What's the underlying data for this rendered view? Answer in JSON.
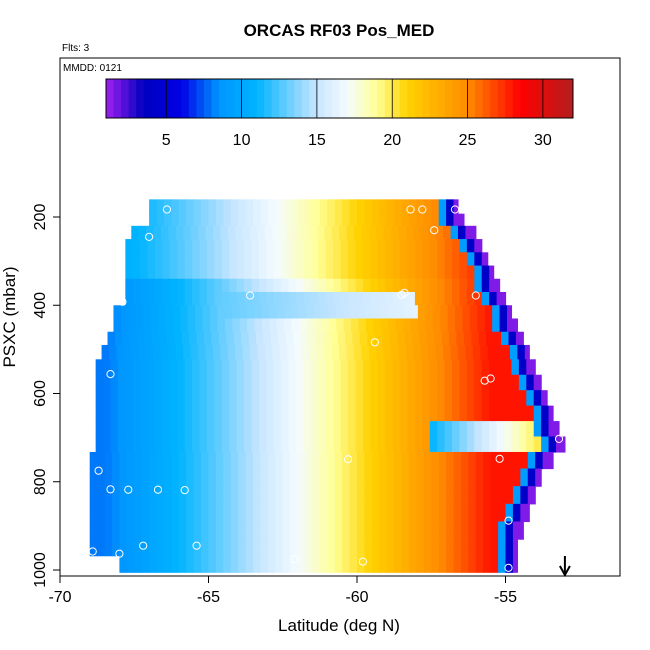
{
  "chart_data": {
    "type": "heatmap",
    "title": "ORCAS RF03 Pos_MED",
    "flights_note": "Flts: 3",
    "date_note": "MMDD: 0121",
    "xlabel": "Latitude (deg N)",
    "ylabel": "PSXC (mbar)",
    "xlim": [
      -70,
      -51
    ],
    "ylim": [
      1010,
      65
    ],
    "x_ticks": [
      -70,
      -65,
      -60,
      -55
    ],
    "x_tick_labels": [
      "-70",
      "-65",
      "-60",
      "-55"
    ],
    "y_ticks": [
      200,
      400,
      600,
      800,
      1000
    ],
    "y_tick_labels": [
      "200",
      "400",
      "600",
      "800",
      "1000"
    ],
    "colorbar": {
      "range": [
        1,
        32
      ],
      "ticks": [
        5,
        10,
        15,
        20,
        25,
        30
      ],
      "tick_labels": [
        "5",
        "10",
        "15",
        "20",
        "25",
        "30"
      ],
      "stops": [
        {
          "v": 1,
          "c": "#a020f0"
        },
        {
          "v": 3.5,
          "c": "#0000c0"
        },
        {
          "v": 6,
          "c": "#0000e6"
        },
        {
          "v": 8.5,
          "c": "#0096ff"
        },
        {
          "v": 11,
          "c": "#00b4ff"
        },
        {
          "v": 15,
          "c": "#c8e6ff"
        },
        {
          "v": 17,
          "c": "#f4fbff"
        },
        {
          "v": 19,
          "c": "#ffff96"
        },
        {
          "v": 21,
          "c": "#ffd200"
        },
        {
          "v": 25,
          "c": "#ff8c00"
        },
        {
          "v": 28.5,
          "c": "#ff0000"
        },
        {
          "v": 32,
          "c": "#b41e1e"
        }
      ]
    },
    "pressure_rows": [
      {
        "p": 180,
        "lat_min": -67.0,
        "lat_max": -56.6
      },
      {
        "p": 205,
        "lat_min": -67.0,
        "lat_max": -56.4
      },
      {
        "p": 235,
        "lat_min": -67.6,
        "lat_max": -56.0
      },
      {
        "p": 265,
        "lat_min": -67.8,
        "lat_max": -55.8
      },
      {
        "p": 295,
        "lat_min": -67.8,
        "lat_max": -55.6
      },
      {
        "p": 325,
        "lat_min": -67.8,
        "lat_max": -55.4
      },
      {
        "p": 355,
        "lat_min": -67.8,
        "lat_max": -55.2
      },
      {
        "p": 385,
        "lat_min": -67.8,
        "lat_max": -55.0
      },
      {
        "p": 415,
        "lat_min": -68.2,
        "lat_max": -54.8
      },
      {
        "p": 445,
        "lat_min": -68.2,
        "lat_max": -54.6
      },
      {
        "p": 475,
        "lat_min": -68.4,
        "lat_max": -54.4
      },
      {
        "p": 505,
        "lat_min": -68.6,
        "lat_max": -54.2
      },
      {
        "p": 540,
        "lat_min": -68.8,
        "lat_max": -54.0
      },
      {
        "p": 575,
        "lat_min": -68.8,
        "lat_max": -53.8
      },
      {
        "p": 610,
        "lat_min": -68.8,
        "lat_max": -53.6
      },
      {
        "p": 645,
        "lat_min": -68.8,
        "lat_max": -53.4
      },
      {
        "p": 680,
        "lat_min": -68.8,
        "lat_max": -53.2
      },
      {
        "p": 715,
        "lat_min": -68.8,
        "lat_max": -53.0
      },
      {
        "p": 750,
        "lat_min": -69.0,
        "lat_max": -53.4
      },
      {
        "p": 790,
        "lat_min": -69.0,
        "lat_max": -53.8
      },
      {
        "p": 830,
        "lat_min": -69.0,
        "lat_max": -54.0
      },
      {
        "p": 870,
        "lat_min": -69.0,
        "lat_max": -54.2
      },
      {
        "p": 910,
        "lat_min": -69.0,
        "lat_max": -54.4
      },
      {
        "p": 950,
        "lat_min": -69.0,
        "lat_max": -54.6
      },
      {
        "p": 985,
        "lat_min": -68.0,
        "lat_max": -54.6
      }
    ],
    "sample_points": [
      {
        "lat": -66.4,
        "p": 183
      },
      {
        "lat": -57.8,
        "p": 183
      },
      {
        "lat": -58.2,
        "p": 183
      },
      {
        "lat": -56.7,
        "p": 183
      },
      {
        "lat": -67.0,
        "p": 245
      },
      {
        "lat": -57.4,
        "p": 230
      },
      {
        "lat": -63.6,
        "p": 378
      },
      {
        "lat": -58.5,
        "p": 376
      },
      {
        "lat": -58.4,
        "p": 372
      },
      {
        "lat": -56.0,
        "p": 378
      },
      {
        "lat": -67.9,
        "p": 392
      },
      {
        "lat": -59.4,
        "p": 484
      },
      {
        "lat": -68.3,
        "p": 556
      },
      {
        "lat": -55.5,
        "p": 566
      },
      {
        "lat": -55.7,
        "p": 571
      },
      {
        "lat": -53.2,
        "p": 703
      },
      {
        "lat": -60.3,
        "p": 749
      },
      {
        "lat": -55.2,
        "p": 748
      },
      {
        "lat": -68.7,
        "p": 775
      },
      {
        "lat": -68.3,
        "p": 817
      },
      {
        "lat": -67.7,
        "p": 818
      },
      {
        "lat": -66.7,
        "p": 818
      },
      {
        "lat": -65.8,
        "p": 819
      },
      {
        "lat": -54.9,
        "p": 888
      },
      {
        "lat": -67.2,
        "p": 945
      },
      {
        "lat": -65.4,
        "p": 945
      },
      {
        "lat": -68.9,
        "p": 958
      },
      {
        "lat": -68.0,
        "p": 963
      },
      {
        "lat": -62.1,
        "p": 975
      },
      {
        "lat": -59.8,
        "p": 981
      },
      {
        "lat": -54.9,
        "p": 995
      }
    ],
    "marker_arrow_lat": -53.0
  }
}
